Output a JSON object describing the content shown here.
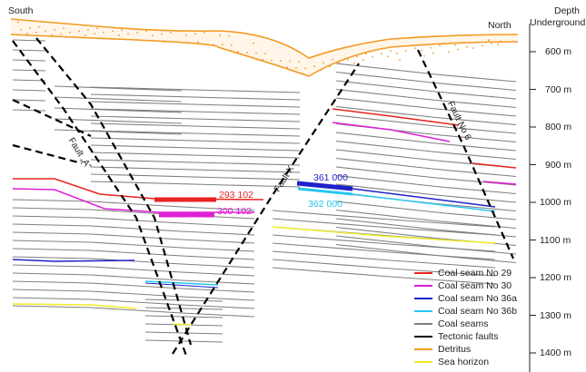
{
  "labels": {
    "south": "South",
    "north": "North",
    "depth_title_1": "Depth",
    "depth_title_2": "Underground"
  },
  "depth_ticks": [
    "600 m",
    "700 m",
    "800 m",
    "900 m",
    "1000 m",
    "1100 m",
    "1200 m",
    "1300 m",
    "1400 m"
  ],
  "faults": {
    "fault_a": "Fault „A“",
    "fault_x": "Fault X",
    "fault_6": "Fault No 6"
  },
  "panels": {
    "p293": "293 102",
    "p300": "300 102",
    "p361": "361 000",
    "p362": "362 000"
  },
  "legend": [
    {
      "label": "Coal seam No 29",
      "color": "#e8231f",
      "icon": "red-line"
    },
    {
      "label": "Coal seam No 30",
      "color": "#e01fd6",
      "icon": "magenta-line"
    },
    {
      "label": "Coal seam No 36a",
      "color": "#1f22c9",
      "icon": "blue-line"
    },
    {
      "label": "Coal seam No 36b",
      "color": "#27c6f0",
      "icon": "cyan-line"
    },
    {
      "label": "Coal seams",
      "color": "#7f7f7f",
      "icon": "gray-line"
    },
    {
      "label": "Tectonic faults",
      "color": "#000000",
      "icon": "black-line"
    },
    {
      "label": "Detritus",
      "color": "#f39a22",
      "icon": "orange-line"
    },
    {
      "label": "Sea horizon",
      "color": "#f2ea2a",
      "icon": "yellow-line"
    }
  ],
  "colors": {
    "seam29": "#e8231f",
    "seam30": "#e01fd6",
    "seam36a": "#1f22c9",
    "seam36b": "#27c6f0",
    "seams": "#7f7f7f",
    "fault": "#000000",
    "detritus": "#f39a22",
    "sea": "#f2ea2a"
  }
}
